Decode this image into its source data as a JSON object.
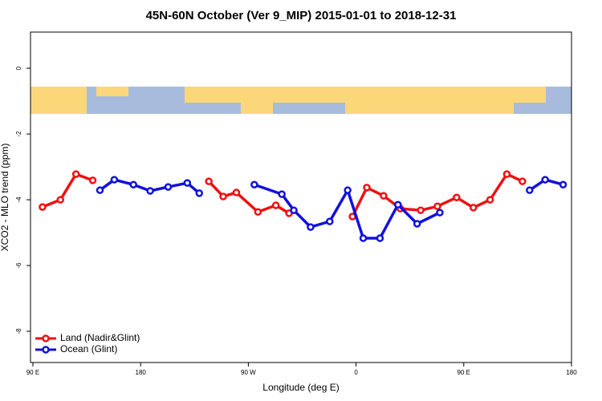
{
  "chart_data": {
    "type": "line",
    "title": "45N-60N October (Ver 9_MIP)   2015-01-01 to 2018-12-31",
    "x_label": "Longitude (deg E)",
    "y_label": "XCO2 - MLO trend (ppm)",
    "xlim": [
      88,
      540
    ],
    "ylim": [
      -8.95,
      1.1
    ],
    "xticks": [
      {
        "value": 90,
        "label": "90 E"
      },
      180,
      {
        "value": 270,
        "label": "90 W"
      },
      {
        "value": 360,
        "label": "0"
      },
      {
        "value": 450,
        "label": "90 E"
      },
      {
        "value": 540,
        "label": "180"
      }
    ],
    "yticks": [
      0,
      -2,
      -4,
      -6,
      -8
    ],
    "legend": "bottom-left",
    "series": [
      {
        "name": "Land (Nadir&Glint)",
        "color": "#ee1111",
        "x": [
          98,
          113,
          126,
          140,
          237,
          249,
          260,
          278,
          293,
          304,
          357,
          369,
          383,
          397,
          414,
          428,
          444,
          458,
          472,
          486,
          499
        ],
        "values": [
          -4.22,
          -4.0,
          -3.22,
          -3.41,
          -3.44,
          -3.9,
          -3.78,
          -4.37,
          -4.17,
          -4.41,
          -4.51,
          -3.63,
          -3.88,
          -4.27,
          -4.32,
          -4.2,
          -3.93,
          -4.24,
          -4.0,
          -3.22,
          -3.44
        ],
        "breaks": [
          4,
          10
        ]
      },
      {
        "name": "Ocean (Glint)",
        "color": "#1111dd",
        "x": [
          146,
          158,
          174,
          188,
          203,
          219,
          229,
          275,
          298,
          308,
          322,
          338,
          353,
          366,
          380,
          395,
          411,
          430,
          505,
          518,
          533
        ],
        "values": [
          -3.71,
          -3.39,
          -3.54,
          -3.73,
          -3.61,
          -3.49,
          -3.8,
          -3.54,
          -3.83,
          -4.32,
          -4.83,
          -4.66,
          -3.71,
          -5.17,
          -5.17,
          -4.15,
          -4.73,
          -4.39,
          -3.71,
          -3.39,
          -3.54
        ],
        "breaks": [
          7,
          18
        ]
      }
    ]
  }
}
